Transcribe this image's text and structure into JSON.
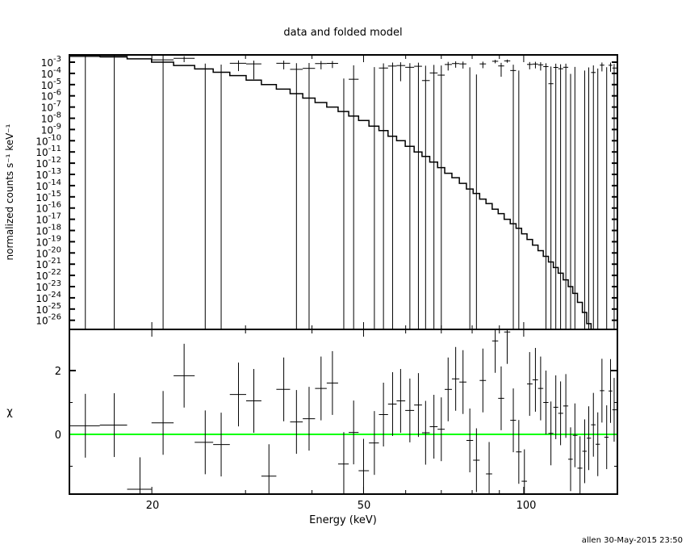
{
  "chart_data": [
    {
      "type": "line",
      "panel": "top",
      "title": "data and folded model",
      "ylabel": "normalized counts s⁻¹ keV⁻¹",
      "xscale": "log",
      "yscale": "log",
      "xlim": [
        14,
        150
      ],
      "ylim": [
        0.0045,
        1.6e-27
      ],
      "ytick_exponents": [
        "-3",
        "-4",
        "-5",
        "-6",
        "-7",
        "-8",
        "-9",
        "-10",
        "-11",
        "-12",
        "-13",
        "-14",
        "-15",
        "-16",
        "-17",
        "-18",
        "-19",
        "-20",
        "-21",
        "-22",
        "-23",
        "-24",
        "-25",
        "-26"
      ],
      "grid": false,
      "series": [
        {
          "kind": "data-with-errors",
          "color": "#000000"
        },
        {
          "kind": "model-histogram",
          "color": "#000000"
        }
      ]
    },
    {
      "type": "scatter",
      "panel": "bottom",
      "xlabel": "Energy (keV)",
      "ylabel": "χ",
      "xscale": "log",
      "xlim": [
        14,
        150
      ],
      "ylim": [
        -1.87,
        3.24
      ],
      "xticks": [
        "20",
        "50",
        "100"
      ],
      "yticks": [
        "0",
        "2"
      ],
      "zero_line_color": "#00ff00",
      "grid": false
    }
  ],
  "bins": [
    {
      "e": 15.0,
      "rate": 0.0032,
      "err": 0.0119,
      "model": 0.00398,
      "chi": 0.27
    },
    {
      "e": 17.0,
      "rate": 0.0028,
      "err": 0.0097,
      "model": 0.00316,
      "chi": 0.29
    },
    {
      "e": 19.0,
      "rate": -0.00206,
      "err": 0.0012,
      "model": 0.002,
      "chi": -1.72
    },
    {
      "e": 21.0,
      "rate": 0.0016,
      "err": 0.0044,
      "model": 0.001,
      "chi": 0.36
    },
    {
      "e": 23.0,
      "rate": 0.0022,
      "err": 0.0012,
      "model": 0.000501,
      "chi": 1.84
    },
    {
      "e": 25.2,
      "rate": -0.00025,
      "err": 0.001,
      "model": 0.000251,
      "chi": -0.25
    },
    {
      "e": 27.0,
      "rate": -0.00029,
      "err": 0.0009,
      "model": 0.000126,
      "chi": -0.32
    },
    {
      "e": 29.1,
      "rate": 0.0008,
      "err": 0.00064,
      "model": 6.31e-05,
      "chi": 1.25
    },
    {
      "e": 31.1,
      "rate": 0.0007,
      "err": 0.00067,
      "model": 2.51e-05,
      "chi": 1.05
    },
    {
      "e": 33.2,
      "rate": -0.00079,
      "err": 0.0006,
      "model": 1e-05,
      "chi": -1.31
    },
    {
      "e": 35.4,
      "rate": 0.0008,
      "err": 0.00057,
      "model": 3.98e-06,
      "chi": 1.41
    },
    {
      "e": 37.4,
      "rate": 0.00023,
      "err": 0.00059,
      "model": 1.58e-06,
      "chi": 0.39
    },
    {
      "e": 39.5,
      "rate": 0.00028,
      "err": 0.00057,
      "model": 6.31e-07,
      "chi": 0.49
    },
    {
      "e": 41.6,
      "rate": 0.00075,
      "err": 0.00052,
      "model": 2.51e-07,
      "chi": 1.44
    },
    {
      "e": 43.7,
      "rate": 0.00078,
      "err": 0.00048,
      "model": 1e-07,
      "chi": 1.61
    },
    {
      "e": 45.9,
      "rate": -0.000465,
      "err": 0.0005,
      "model": 3.98e-08,
      "chi": -0.93
    },
    {
      "e": 47.9,
      "rate": 3e-05,
      "err": 0.0005,
      "model": 1.58e-08,
      "chi": 0.06
    },
    {
      "e": 50.0,
      "rate": -0.00057,
      "err": 0.0005,
      "model": 6.31e-09,
      "chi": -1.14
    },
    {
      "e": 52.4,
      "rate": -0.000135,
      "err": 0.0005,
      "model": 2e-09,
      "chi": -0.27
    },
    {
      "e": 54.5,
      "rate": 0.0003,
      "err": 0.00048,
      "model": 7.94e-10,
      "chi": 0.62
    },
    {
      "e": 56.7,
      "rate": 0.00045,
      "err": 0.00047,
      "model": 2.51e-10,
      "chi": 0.95
    },
    {
      "e": 58.7,
      "rate": 0.0005,
      "err": 0.00048,
      "model": 1e-10,
      "chi": 1.05
    },
    {
      "e": 61.1,
      "rate": 0.00035,
      "err": 0.00047,
      "model": 3.16e-11,
      "chi": 0.75
    },
    {
      "e": 63.4,
      "rate": 0.00043,
      "err": 0.00047,
      "model": 1e-11,
      "chi": 0.92
    },
    {
      "e": 65.4,
      "rate": 2.3e-05,
      "err": 0.00046,
      "model": 3.98e-12,
      "chi": 0.05
    },
    {
      "e": 67.8,
      "rate": 0.00011,
      "err": 0.00046,
      "model": 1.26e-12,
      "chi": 0.24
    },
    {
      "e": 70.0,
      "rate": 7e-05,
      "err": 0.00044,
      "model": 3.98e-13,
      "chi": 0.16
    },
    {
      "e": 72.1,
      "rate": 0.00062,
      "err": 0.00044,
      "model": 1.26e-13,
      "chi": 1.41
    },
    {
      "e": 74.5,
      "rate": 0.00075,
      "err": 0.00043,
      "model": 5.01e-14,
      "chi": 1.74
    },
    {
      "e": 76.9,
      "rate": 0.0007,
      "err": 0.00043,
      "model": 1.58e-14,
      "chi": 1.64
    },
    {
      "e": 79.2,
      "rate": -8.2e-05,
      "err": 0.00043,
      "model": 5.01e-15,
      "chi": -0.19
    },
    {
      "e": 81.5,
      "rate": -0.00034,
      "err": 0.00042,
      "model": 2e-15,
      "chi": -0.81
    },
    {
      "e": 83.8,
      "rate": 0.0007,
      "err": 0.00041,
      "model": 6.31e-16,
      "chi": 1.69
    },
    {
      "e": 86.1,
      "rate": -0.00051,
      "err": 0.00041,
      "model": 2.51e-16,
      "chi": -1.24
    },
    {
      "e": 88.4,
      "rate": 0.0012,
      "err": 0.00041,
      "model": 7.94e-17,
      "chi": 2.93
    },
    {
      "e": 90.7,
      "rate": 0.00046,
      "err": 0.00041,
      "model": 3.16e-17,
      "chi": 1.13
    },
    {
      "e": 93.1,
      "rate": 0.0013,
      "err": 0.000405,
      "model": 1e-17,
      "chi": 3.21
    },
    {
      "e": 95.6,
      "rate": 0.00018,
      "err": 0.00041,
      "model": 3.98e-18,
      "chi": 0.44
    },
    {
      "e": 97.9,
      "rate": -0.00022,
      "err": 0.0004,
      "model": 1.58e-18,
      "chi": -0.55
    },
    {
      "e": 100.3,
      "rate": -0.00059,
      "err": 0.0004,
      "model": 5.01e-19,
      "chi": -1.47
    },
    {
      "e": 102.6,
      "rate": 0.00063,
      "err": 0.0004,
      "model": 1.58e-19,
      "chi": 1.58
    },
    {
      "e": 105.2,
      "rate": 0.00068,
      "err": 0.0004,
      "model": 5.01e-20,
      "chi": 1.71
    },
    {
      "e": 107.6,
      "rate": 0.00058,
      "err": 0.0004,
      "model": 1.58e-20,
      "chi": 1.44
    },
    {
      "e": 110.1,
      "rate": 0.0004,
      "err": 0.0004,
      "model": 5.01e-21,
      "chi": 1.0
    },
    {
      "e": 112.5,
      "rate": 1.2e-05,
      "err": 0.0004,
      "model": 1.58e-21,
      "chi": 0.03
    },
    {
      "e": 114.9,
      "rate": 0.00034,
      "err": 0.0004,
      "model": 5.01e-22,
      "chi": 0.85
    },
    {
      "e": 117.3,
      "rate": 0.00026,
      "err": 0.00039,
      "model": 1.58e-22,
      "chi": 0.66
    },
    {
      "e": 120.0,
      "rate": 0.00035,
      "err": 0.00039,
      "model": 3.98e-23,
      "chi": 0.89
    },
    {
      "e": 122.5,
      "rate": -0.0003,
      "err": 0.00039,
      "model": 1e-23,
      "chi": -0.78
    },
    {
      "e": 124.8,
      "rate": -1.2e-05,
      "err": 0.00039,
      "model": 2.51e-24,
      "chi": -0.03
    },
    {
      "e": 127.6,
      "rate": -0.00041,
      "err": 0.00039,
      "model": 3.98e-25,
      "chi": -1.06
    },
    {
      "e": 130.2,
      "rate": -0.00021,
      "err": 0.00039,
      "model": 5.01e-26,
      "chi": -0.53
    },
    {
      "e": 132.5,
      "rate": -4.7e-05,
      "err": 0.00039,
      "model": 5.01e-27,
      "chi": -0.12
    },
    {
      "e": 135.2,
      "rate": 0.00012,
      "err": 0.0004,
      "model": 3.16e-28,
      "chi": 0.3
    },
    {
      "e": 137.8,
      "rate": -0.00012,
      "err": 0.00039,
      "model": 1e-29,
      "chi": -0.31
    },
    {
      "e": 140.3,
      "rate": 0.00054,
      "err": 0.00039,
      "model": 3.16e-31,
      "chi": 1.37
    },
    {
      "e": 143.2,
      "rate": -3.5e-05,
      "err": 0.00039,
      "model": 1e-32,
      "chi": -0.09
    },
    {
      "e": 145.6,
      "rate": 0.00053,
      "err": 0.00039,
      "model": 3.16e-34,
      "chi": 1.36
    },
    {
      "e": 147.9,
      "rate": 0.0003,
      "err": 0.00039,
      "model": 1e-35,
      "chi": 0.77
    }
  ],
  "footer": "allen 30-May-2015 23:50"
}
